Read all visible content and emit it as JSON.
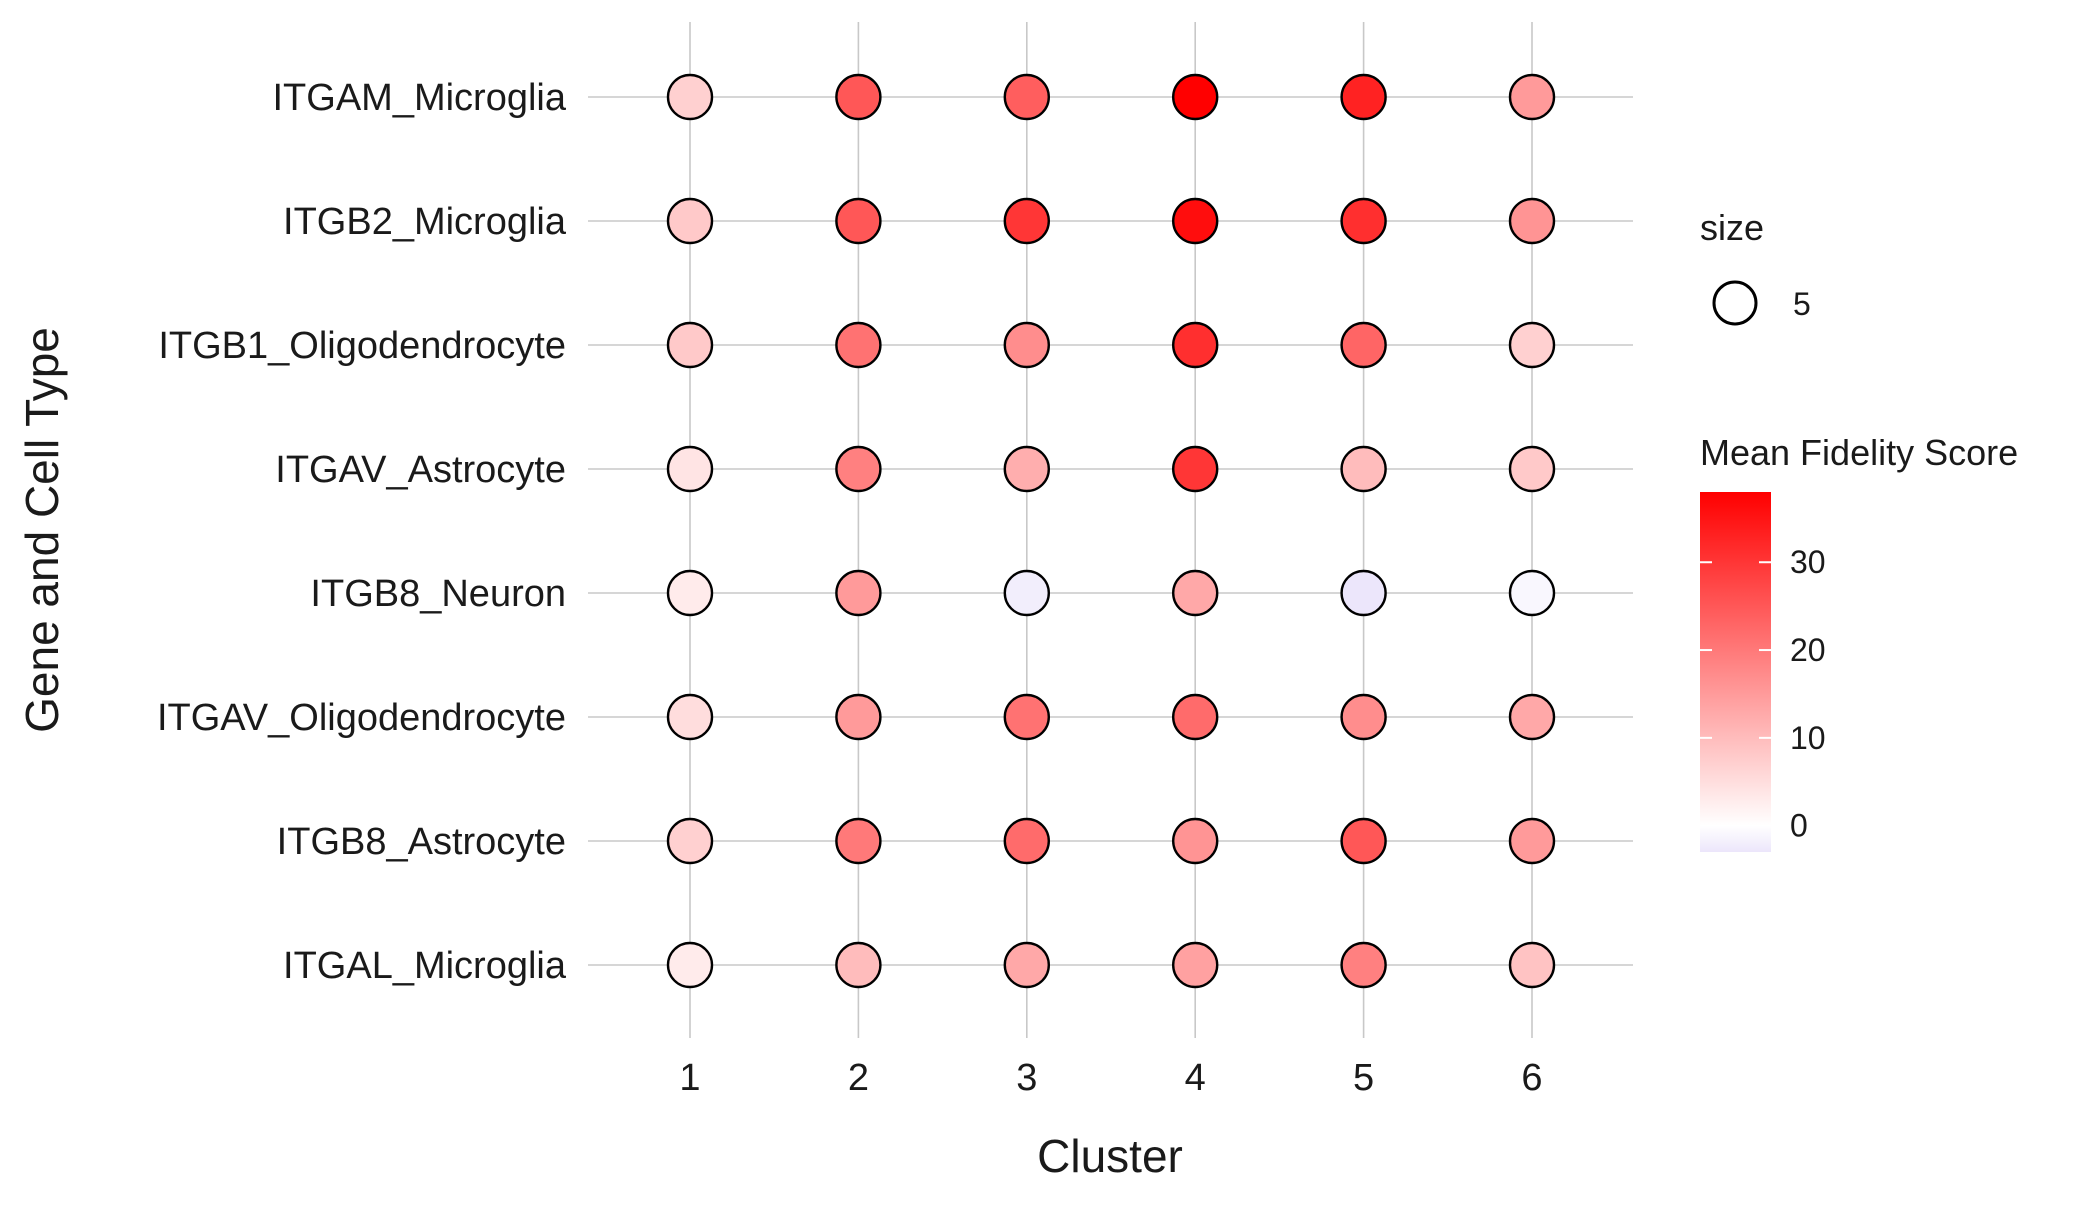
{
  "chart_data": {
    "type": "scatter",
    "title": "",
    "xlabel": "Cluster",
    "ylabel": "Gene and Cell Type",
    "x_categories": [
      "1",
      "2",
      "3",
      "4",
      "5",
      "6"
    ],
    "y_categories": [
      "ITGAM_Microglia",
      "ITGB2_Microglia",
      "ITGB1_Oligodendrocyte",
      "ITGAV_Astrocyte",
      "ITGB8_Neuron",
      "ITGAV_Oligodendrocyte",
      "ITGB8_Astrocyte",
      "ITGAL_Microglia"
    ],
    "series": [
      {
        "row": "ITGAM_Microglia",
        "values": [
          7,
          25,
          24,
          38,
          33,
          15
        ]
      },
      {
        "row": "ITGB2_Microglia",
        "values": [
          8,
          25,
          30,
          36,
          31,
          16
        ]
      },
      {
        "row": "ITGB1_Oligodendrocyte",
        "values": [
          8,
          21,
          17,
          31,
          23,
          7
        ]
      },
      {
        "row": "ITGAV_Astrocyte",
        "values": [
          4,
          19,
          12,
          30,
          10,
          8
        ]
      },
      {
        "row": "ITGB8_Neuron",
        "values": [
          3,
          15,
          -2,
          13,
          -4,
          -1
        ]
      },
      {
        "row": "ITGAV_Oligodendrocyte",
        "values": [
          5,
          15,
          21,
          22,
          17,
          13
        ]
      },
      {
        "row": "ITGB8_Astrocyte",
        "values": [
          7,
          20,
          22,
          16,
          25,
          15
        ]
      },
      {
        "row": "ITGAL_Microglia",
        "values": [
          3,
          10,
          13,
          14,
          19,
          9
        ]
      }
    ],
    "legend": {
      "size_title": "size",
      "size_label": "5",
      "color_title": "Mean Fidelity Score",
      "color_ticks": [
        0,
        10,
        20,
        30
      ],
      "color_tick_labels": [
        "0",
        "10",
        "20",
        "30"
      ],
      "color_range": [
        -3,
        38
      ],
      "color_low": "#ece6fb",
      "color_mid": "#ffffff",
      "color_high": "#ff0000",
      "placement": "right"
    },
    "grid": true
  }
}
